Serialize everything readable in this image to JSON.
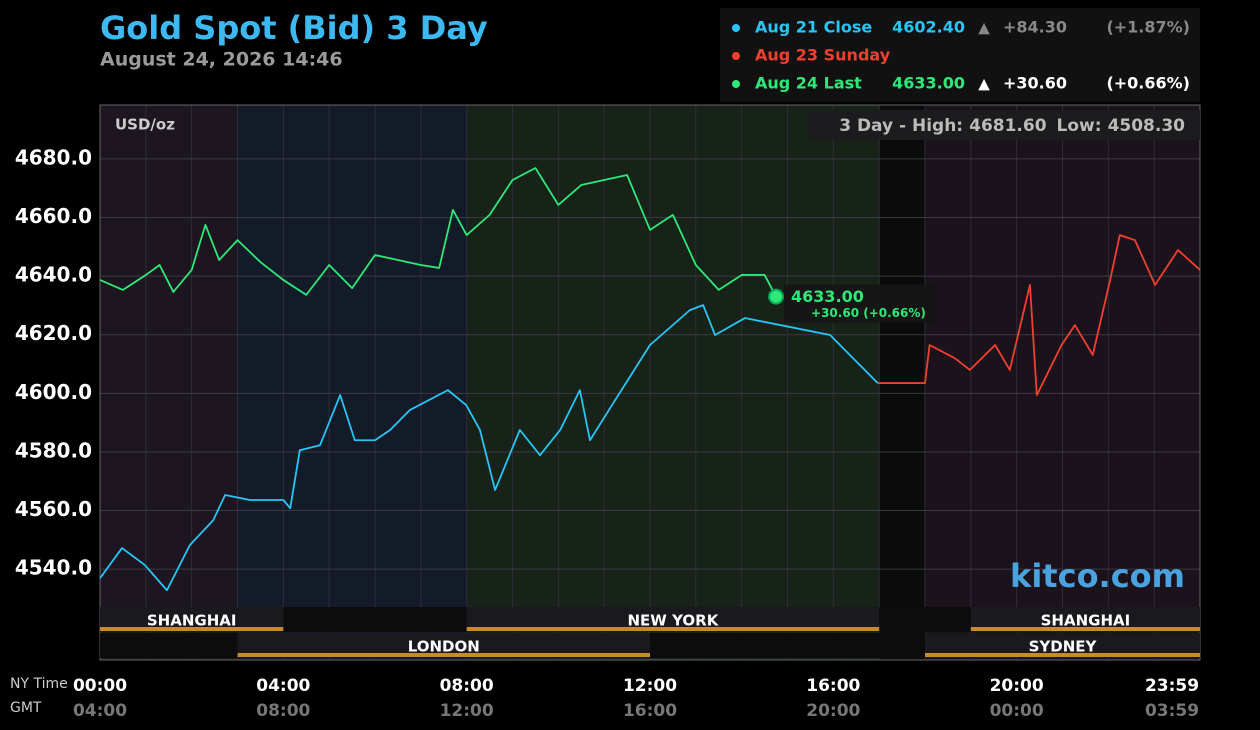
{
  "chart_data": {
    "type": "line",
    "title": "Gold Spot (Bid) 3 Day",
    "subtitle": "August 24, 2026 14:46",
    "y_unit_label": "USD/oz",
    "stats": {
      "label": "3 Day - High:",
      "high": "4681.60",
      "low_label": "Low:",
      "low": "4508.30"
    },
    "watermark": "kitco.com",
    "x_row_labels": [
      "NY Time",
      "GMT"
    ],
    "xlim": [
      0,
      24
    ],
    "xticks": [
      {
        "value": 0,
        "label": "00:00"
      },
      {
        "value": 4,
        "label": "04:00"
      },
      {
        "value": 8,
        "label": "08:00"
      },
      {
        "value": 12,
        "label": "12:00"
      },
      {
        "value": 16,
        "label": "16:00"
      },
      {
        "value": 20,
        "label": "20:00"
      },
      {
        "value": 24,
        "label": "23:59"
      }
    ],
    "gmt_tick_labels": [
      "04:00",
      "08:00",
      "12:00",
      "16:00",
      "20:00",
      "00:00",
      "03:59"
    ],
    "ylim": [
      4509,
      4698.4
    ],
    "yticks": [
      {
        "value": 4540,
        "label": "4540.0"
      },
      {
        "value": 4560,
        "label": "4560.0"
      },
      {
        "value": 4580,
        "label": "4580.0"
      },
      {
        "value": 4600,
        "label": "4600.0"
      },
      {
        "value": 4620,
        "label": "4620.0"
      },
      {
        "value": 4640,
        "label": "4640.0"
      },
      {
        "value": 4660,
        "label": "4660.0"
      },
      {
        "value": 4680,
        "label": "4680.0"
      }
    ],
    "grid": true,
    "sessions": [
      {
        "name": "SHANGHAI",
        "start": 0,
        "end": 4,
        "row": 0
      },
      {
        "name": "NEW YORK",
        "start": 8,
        "end": 17,
        "row": 0
      },
      {
        "name": "SHANGHAI",
        "start": 19,
        "end": 24,
        "row": 0
      },
      {
        "name": "LONDON",
        "start": 3,
        "end": 12,
        "row": 1
      },
      {
        "name": "SYDNEY",
        "start": 18,
        "end": 24,
        "row": 1
      }
    ],
    "series": [
      {
        "name": "Aug 21 Close",
        "color": "#29c5f6",
        "legend_value": "4602.40",
        "legend_arrow": "▲",
        "legend_change": "+84.30",
        "legend_pct": "(+1.87%)",
        "x": [
          0,
          0.48,
          0.98,
          1.46,
          1.96,
          2.47,
          2.73,
          3.27,
          4,
          4.15,
          4.36,
          4.8,
          5.24,
          5.56,
          6,
          6.33,
          6.76,
          7.59,
          7.99,
          8.29,
          8.62,
          9.16,
          9.6,
          10.04,
          10.47,
          10.69,
          11.24,
          12,
          12.87,
          13.16,
          13.42,
          14.07,
          14.84,
          15.93,
          16.36,
          16.97
        ],
        "values": [
          4536.9,
          4547.2,
          4541.4,
          4532.8,
          4548.2,
          4556.7,
          4565.3,
          4563.6,
          4563.6,
          4560.8,
          4580.6,
          4582.3,
          4599.4,
          4584.0,
          4584.0,
          4587.5,
          4594.3,
          4601.1,
          4596.0,
          4587.5,
          4567.0,
          4587.5,
          4578.9,
          4587.5,
          4601.1,
          4584.0,
          4597.7,
          4616.5,
          4628.4,
          4630.1,
          4619.9,
          4625.7,
          4623.3,
          4619.9,
          4613.1,
          4603.5
        ]
      },
      {
        "name": "Aug 23 Sunday",
        "color": "#f0402f",
        "x": [
          16.97,
          18,
          18.1,
          18.65,
          18.98,
          19.53,
          19.85,
          20.29,
          20.44,
          20.98,
          21.27,
          21.66,
          22.04,
          22.25,
          22.58,
          23.02,
          23.52,
          24
        ],
        "values": [
          4603.5,
          4603.5,
          4616.5,
          4612.0,
          4608.0,
          4616.5,
          4608.0,
          4637.0,
          4599.4,
          4616.5,
          4623.3,
          4613.1,
          4638.7,
          4654.0,
          4652.3,
          4637.0,
          4648.9,
          4642.1
        ]
      },
      {
        "name": "Aug 24 Last",
        "color": "#2ee878",
        "legend_value": "4633.00",
        "legend_arrow": "▲",
        "legend_change": "+30.60",
        "legend_pct": "(+0.66%)",
        "callout_value": "4633.00",
        "callout_change": "+30.60 (+0.66%)",
        "x": [
          0,
          0.5,
          1,
          1.3,
          1.6,
          2,
          2.3,
          2.6,
          3,
          3.5,
          4,
          4.5,
          5,
          5.5,
          6,
          6.5,
          7,
          7.4,
          7.7,
          8,
          8.5,
          9,
          9.5,
          10,
          10.5,
          11,
          11.5,
          12,
          12.5,
          13,
          13.5,
          14,
          14.5,
          14.75
        ],
        "values": [
          4638.7,
          4635.3,
          4640.4,
          4643.8,
          4634.6,
          4642.1,
          4657.5,
          4645.5,
          4652.3,
          4644.8,
          4638.7,
          4633.6,
          4643.8,
          4635.9,
          4647.2,
          4645.5,
          4643.8,
          4642.8,
          4662.6,
          4654.0,
          4660.9,
          4672.8,
          4676.9,
          4664.3,
          4671.1,
          4672.8,
          4674.5,
          4655.8,
          4660.9,
          4643.8,
          4635.3,
          4640.4,
          4640.4,
          4633.0
        ]
      }
    ]
  }
}
